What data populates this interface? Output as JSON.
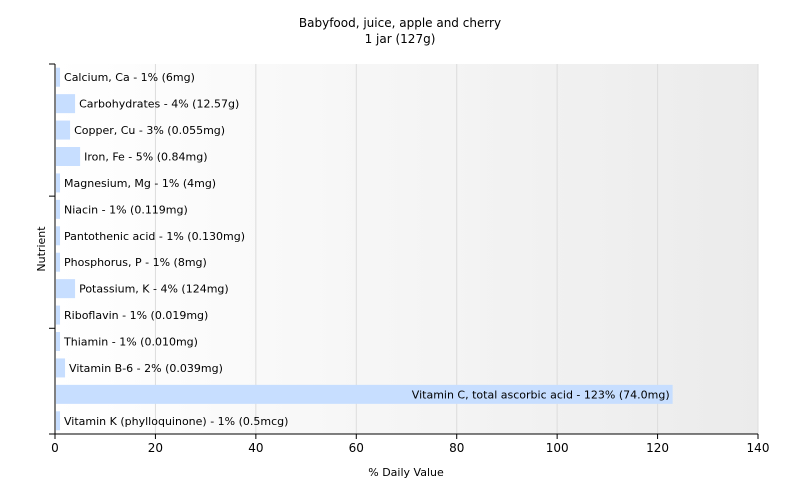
{
  "chart_data": {
    "type": "bar",
    "orientation": "horizontal",
    "title": "Babyfood, juice, apple and cherry",
    "subtitle": "1 jar (127g)",
    "xlabel": "% Daily Value",
    "ylabel": "Nutrient",
    "xlim": [
      0,
      140
    ],
    "xticks": [
      0,
      20,
      40,
      60,
      80,
      100,
      120,
      140
    ],
    "grid": true,
    "bar_color": "#c7deff",
    "background_gradient": [
      "#ffffff",
      "#ebebeb"
    ],
    "categories": [
      "Calcium, Ca",
      "Carbohydrates",
      "Copper, Cu",
      "Iron, Fe",
      "Magnesium, Mg",
      "Niacin",
      "Pantothenic acid",
      "Phosphorus, P",
      "Potassium, K",
      "Riboflavin",
      "Thiamin",
      "Vitamin B-6",
      "Vitamin C, total ascorbic acid",
      "Vitamin K (phylloquinone)"
    ],
    "values": [
      1,
      4,
      3,
      5,
      1,
      1,
      1,
      1,
      4,
      1,
      1,
      2,
      123,
      1
    ],
    "labels": [
      "Calcium, Ca - 1% (6mg)",
      "Carbohydrates - 4% (12.57g)",
      "Copper, Cu - 3% (0.055mg)",
      "Iron, Fe - 5% (0.84mg)",
      "Magnesium, Mg - 1% (4mg)",
      "Niacin - 1% (0.119mg)",
      "Pantothenic acid - 1% (0.130mg)",
      "Phosphorus, P - 1% (8mg)",
      "Potassium, K - 4% (124mg)",
      "Riboflavin - 1% (0.019mg)",
      "Thiamin - 1% (0.010mg)",
      "Vitamin B-6 - 2% (0.039mg)",
      "Vitamin C, total ascorbic acid - 123% (74.0mg)",
      "Vitamin K (phylloquinone) - 1% (0.5mcg)"
    ]
  }
}
